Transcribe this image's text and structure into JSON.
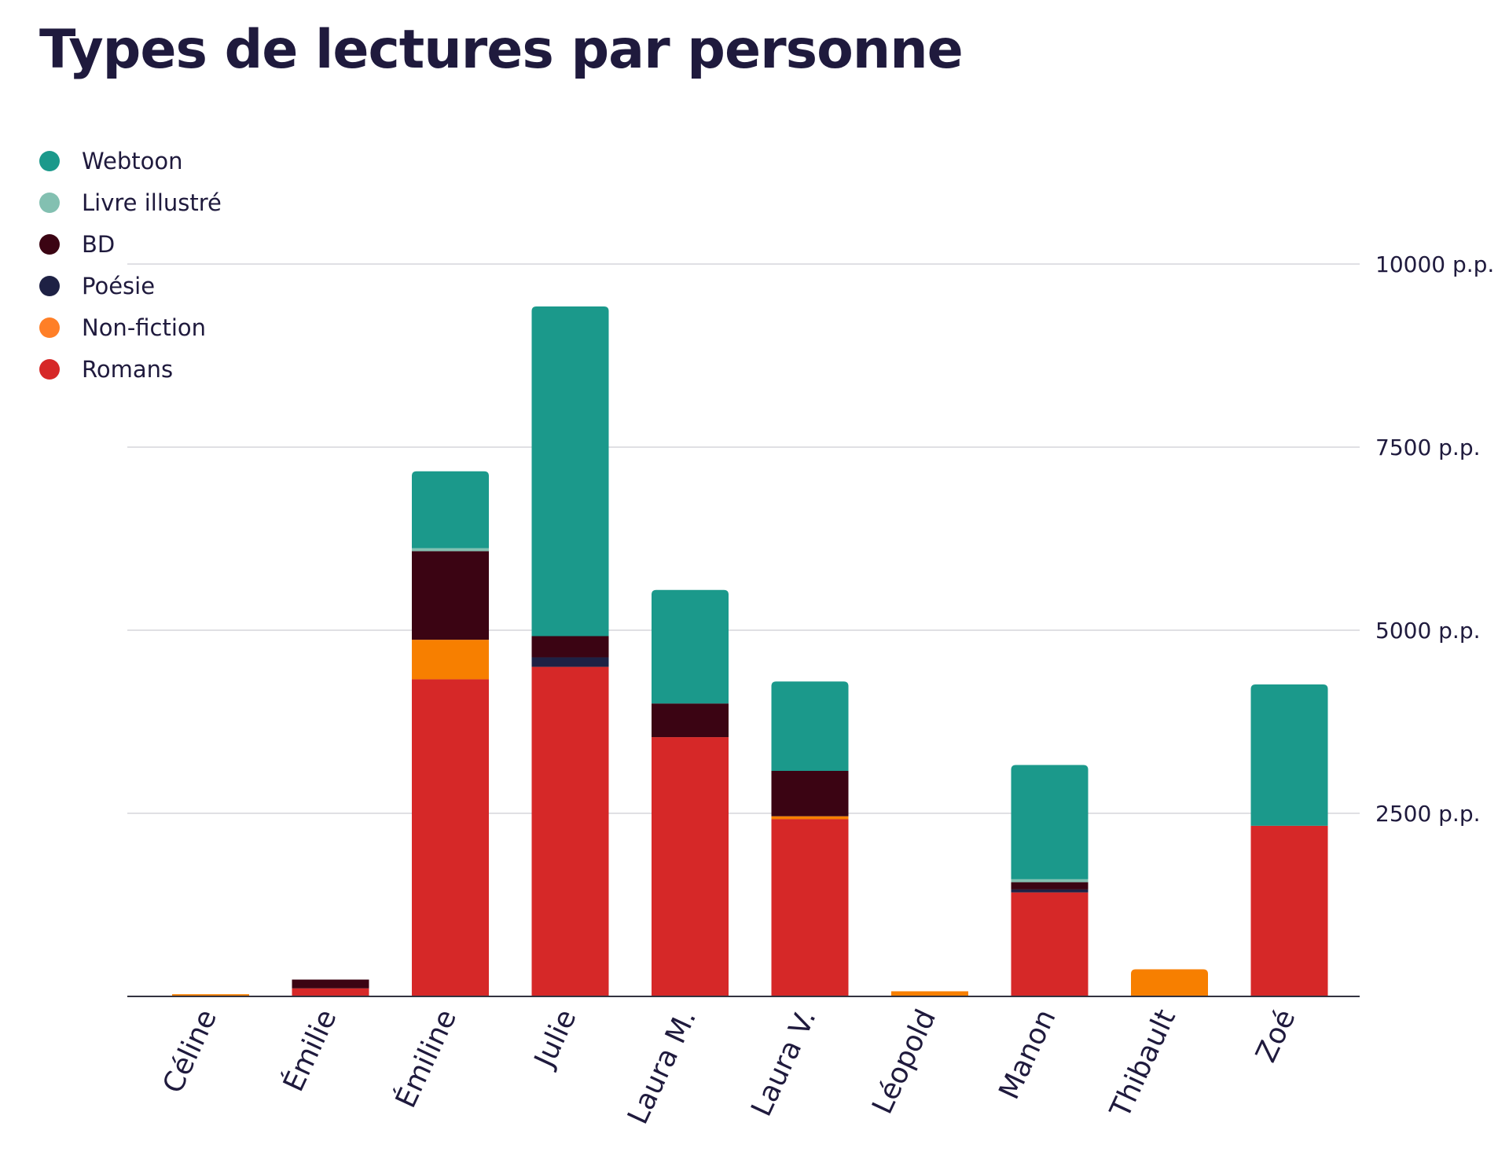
{
  "title": "Types de lectures par personne",
  "chart_data": {
    "type": "bar",
    "stacked": true,
    "title": "Types de lectures par personne",
    "xlabel": "",
    "ylabel": "",
    "ylim": [
      0,
      10000
    ],
    "yticks": [
      2500,
      5000,
      7500,
      10000
    ],
    "ytick_labels": [
      "2500 p.p.",
      "5000 p.p.",
      "7500 p.p.",
      "10000 p.p."
    ],
    "grid": true,
    "legend_position": "top-left",
    "categories": [
      "Céline",
      "Émilie",
      "Émiline",
      "Julie",
      "Laura M.",
      "Laura V.",
      "Léopold",
      "Manon",
      "Thibault",
      "Zoé"
    ],
    "series": [
      {
        "name": "Romans",
        "color": "#d62828",
        "values": [
          0,
          110,
          4330,
          4500,
          3540,
          2420,
          0,
          1420,
          0,
          2330
        ]
      },
      {
        "name": "Non-fiction",
        "color": "#f77f00",
        "values": [
          30,
          0,
          540,
          0,
          0,
          40,
          70,
          0,
          370,
          0
        ]
      },
      {
        "name": "Poésie",
        "color": "#1e2144",
        "values": [
          0,
          0,
          0,
          130,
          0,
          0,
          0,
          40,
          0,
          0
        ]
      },
      {
        "name": "BD",
        "color": "#3b0413",
        "values": [
          0,
          120,
          1210,
          290,
          460,
          620,
          0,
          100,
          0,
          0
        ]
      },
      {
        "name": "Livre illustré",
        "color": "#83c0b1",
        "values": [
          0,
          0,
          40,
          0,
          0,
          0,
          0,
          40,
          0,
          0
        ]
      },
      {
        "name": "Webtoon",
        "color": "#1b998b",
        "values": [
          0,
          0,
          1050,
          4500,
          1550,
          1220,
          0,
          1560,
          0,
          1930
        ]
      }
    ],
    "legend": [
      {
        "name": "Webtoon",
        "color": "#1b998b"
      },
      {
        "name": "Livre illustré",
        "color": "#83c0b1"
      },
      {
        "name": "BD",
        "color": "#3b0413"
      },
      {
        "name": "Poésie",
        "color": "#1e2144"
      },
      {
        "name": "Non-fiction",
        "color": "#ff7f27"
      },
      {
        "name": "Romans",
        "color": "#d62828"
      }
    ]
  }
}
